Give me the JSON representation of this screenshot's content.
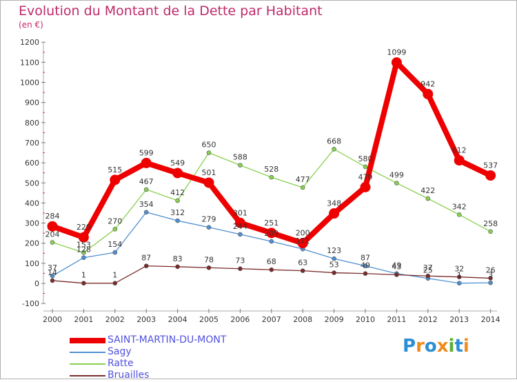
{
  "header": {
    "title": "Evolution du Montant de la Dette par Habitant",
    "unit": "(en €)"
  },
  "brand": {
    "letters": [
      "P",
      "r",
      "o",
      "x",
      "i",
      "t",
      "i"
    ],
    "colors": [
      "#2a8fd6",
      "#f08a1c",
      "#2a8fd6",
      "#f08a1c",
      "#58b030",
      "#2a8fd6",
      "#f08a1c"
    ]
  },
  "chart_data": {
    "type": "line",
    "x": [
      "2000",
      "2001",
      "2002",
      "2003",
      "2004",
      "2005",
      "2006",
      "2007",
      "2008",
      "2009",
      "2010",
      "2011",
      "2012",
      "2013",
      "2014"
    ],
    "yticks": [
      "-100",
      "0",
      "100",
      "200",
      "300",
      "400",
      "500",
      "600",
      "700",
      "800",
      "900",
      "1000",
      "1100",
      "1200"
    ],
    "ylim": [
      -100,
      1200
    ],
    "grid": false,
    "legend_position": "bottom-left",
    "series": [
      {
        "name": "SAINT-MARTIN-DU-MONT",
        "color": "#ee0000",
        "thick": true,
        "values": [
          284,
          229,
          515,
          599,
          549,
          501,
          301,
          251,
          200,
          348,
          479,
          1099,
          942,
          612,
          537
        ]
      },
      {
        "name": "Sagy",
        "color": "#4f8fd0",
        "thick": false,
        "values": [
          37,
          128,
          154,
          354,
          312,
          279,
          244,
          209,
          171,
          123,
          87,
          49,
          25,
          1,
          3
        ]
      },
      {
        "name": "Ratte",
        "color": "#88d050",
        "thick": false,
        "values": [
          204,
          153,
          270,
          467,
          412,
          650,
          588,
          528,
          477,
          668,
          580,
          499,
          422,
          342,
          258
        ]
      },
      {
        "name": "Bruailles",
        "color": "#7a2a2a",
        "thick": false,
        "values": [
          14,
          1,
          1,
          87,
          83,
          78,
          73,
          68,
          63,
          53,
          49,
          43,
          37,
          32,
          26
        ]
      }
    ],
    "labels": {
      "SAINT-MARTIN-DU-MONT": [
        "284",
        "229",
        "515",
        "599",
        "549",
        "501",
        "301",
        "251",
        "200",
        "348",
        "479",
        "1099",
        "942",
        "612",
        "537"
      ],
      "Sagy": [
        "37",
        "128",
        "154",
        "354",
        "312",
        "279",
        "244",
        "209",
        "171",
        "123",
        "87",
        "49",
        "25",
        "1",
        "3"
      ],
      "Ratte": [
        "204",
        "153",
        "270",
        "467",
        "412",
        "650",
        "588",
        "528",
        "477",
        "668",
        "580",
        "499",
        "422",
        "342",
        "258"
      ],
      "Bruailles": [
        "14",
        "1",
        "1",
        "87",
        "83",
        "78",
        "73",
        "68",
        "63",
        "53",
        "49",
        "43",
        "37",
        "32",
        "26"
      ]
    }
  }
}
